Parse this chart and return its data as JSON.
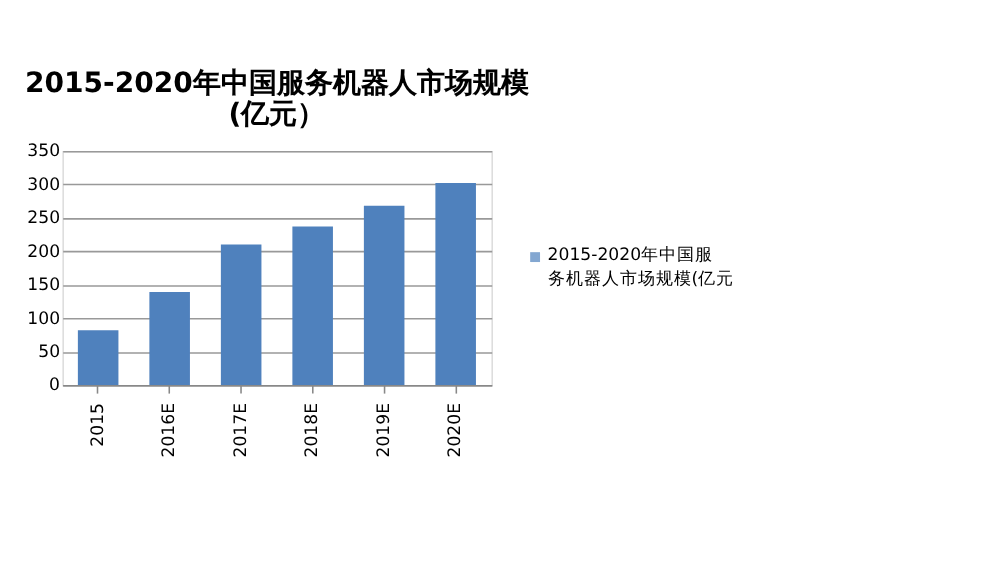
{
  "chart_data": {
    "type": "bar",
    "title": [
      "2015-2020年中国服务机器人市场规模",
      "(亿元）"
    ],
    "categories": [
      "2015",
      "2016E",
      "2017E",
      "2018E",
      "2019E",
      "2020E"
    ],
    "series": [
      {
        "name": "2015-2020年中国服务机器人市场规模(亿元",
        "color": "#4f81bd",
        "values": [
          82,
          139,
          210,
          237,
          268,
          302
        ]
      }
    ],
    "ylim": [
      0,
      350
    ],
    "yticks": [
      0,
      50,
      100,
      150,
      200,
      250,
      300,
      350
    ],
    "grid": "y",
    "legend": "right"
  }
}
